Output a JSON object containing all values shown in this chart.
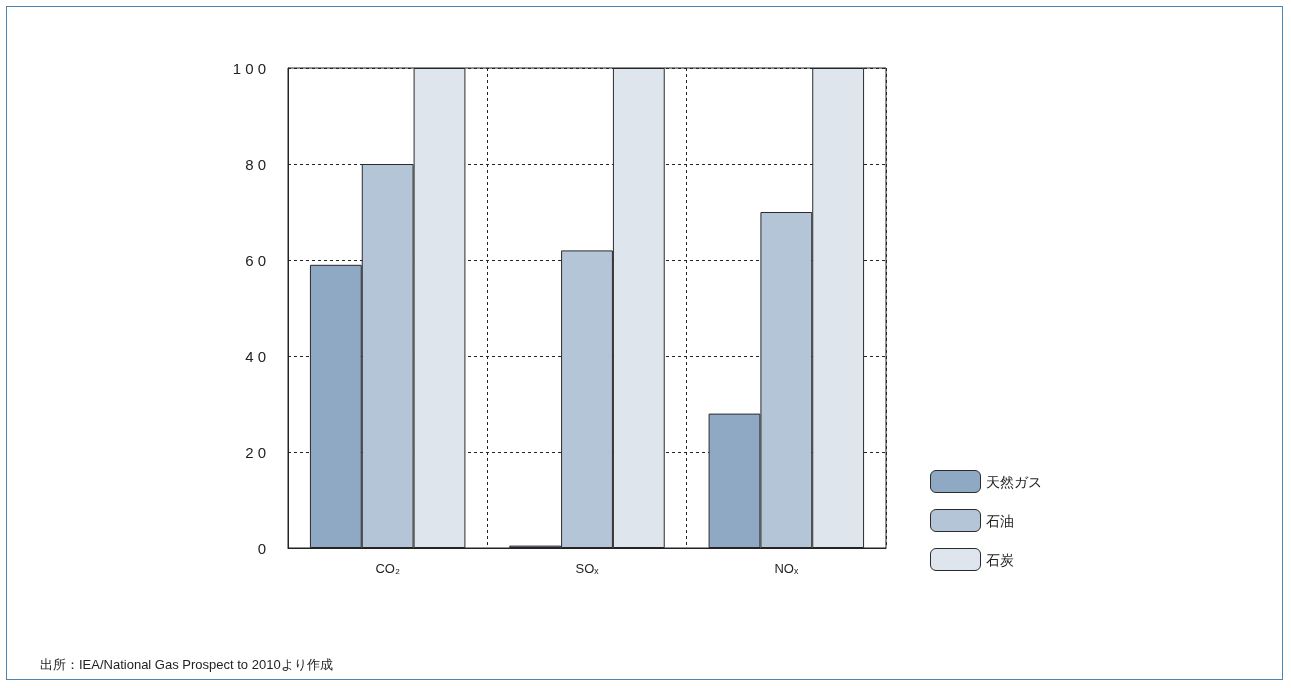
{
  "chart_data": {
    "type": "bar",
    "categories": [
      "CO₂",
      "SOₓ",
      "NOₓ"
    ],
    "series": [
      {
        "name": "天然ガス",
        "color": "#8fa9c5",
        "values": [
          59,
          0.5,
          28
        ]
      },
      {
        "name": "石油",
        "color": "#b4c5d8",
        "values": [
          80,
          62,
          70
        ]
      },
      {
        "name": "石炭",
        "color": "#dee5ed",
        "values": [
          100,
          100,
          100
        ]
      }
    ],
    "ylim": [
      0,
      100
    ],
    "yticks": [
      0,
      20,
      40,
      60,
      80,
      100
    ],
    "grid": true,
    "legend": "right",
    "annotations": [
      "出所：IEA/National Gas Prospect to 2010より作成"
    ]
  }
}
